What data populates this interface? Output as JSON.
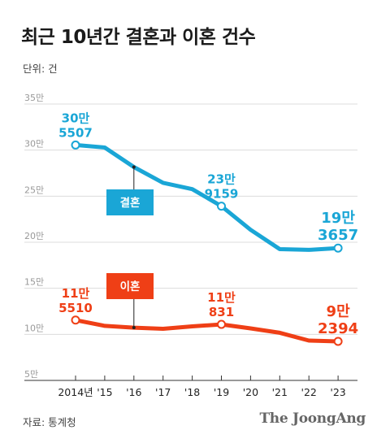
{
  "title": "최근 10년간 결혼과 이혼 건수",
  "unit_label": "단위: 건",
  "source": "자료: 통계청",
  "brand": "The JoongAng",
  "colors": {
    "marriage": "#1aa6d6",
    "divorce": "#ef3f16"
  },
  "chart_data": {
    "type": "line",
    "x": [
      "2014년",
      "'15",
      "'16",
      "'17",
      "'18",
      "'19",
      "'20",
      "'21",
      "'22",
      "'23"
    ],
    "yticks": [
      "5만",
      "10만",
      "15만",
      "20만",
      "25만",
      "30만",
      "35만"
    ],
    "ytick_values": [
      50000,
      100000,
      150000,
      200000,
      250000,
      300000,
      350000
    ],
    "ylim": [
      50000,
      350000
    ],
    "series": [
      {
        "name": "결혼",
        "values": [
          305507,
          302800,
          281600,
          264500,
          257600,
          239159,
          213500,
          192500,
          191700,
          193657
        ],
        "annotations": [
          {
            "index": 0,
            "lines": [
              "30만",
              "5507"
            ]
          },
          {
            "index": 5,
            "lines": [
              "23만",
              "9159"
            ]
          },
          {
            "index": 9,
            "lines": [
              "19만",
              "3657"
            ]
          }
        ]
      },
      {
        "name": "이혼",
        "values": [
          115510,
          109200,
          107300,
          106000,
          108700,
          110831,
          106500,
          101700,
          93200,
          92394
        ],
        "annotations": [
          {
            "index": 0,
            "lines": [
              "11만",
              "5510"
            ]
          },
          {
            "index": 5,
            "lines": [
              "11만",
              "831"
            ]
          },
          {
            "index": 9,
            "lines": [
              "9만",
              "2394"
            ]
          }
        ]
      }
    ],
    "grid": "horizontal"
  }
}
